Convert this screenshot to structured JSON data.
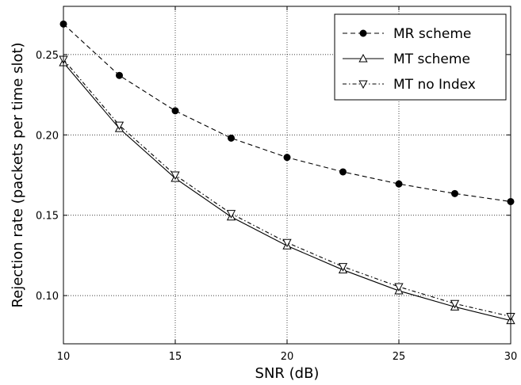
{
  "chart_data": {
    "type": "line",
    "xlabel": "SNR (dB)",
    "ylabel": "Rejection rate (packets per time slot)",
    "xlim": [
      10,
      30
    ],
    "ylim": [
      0.07,
      0.28
    ],
    "xticks": [
      "10",
      "15",
      "20",
      "25",
      "30"
    ],
    "xtick_values": [
      10,
      15,
      20,
      25,
      30
    ],
    "yticks": [
      "0.10",
      "0.15",
      "0.20",
      "0.25"
    ],
    "ytick_values": [
      0.1,
      0.15,
      0.2,
      0.25
    ],
    "grid": true,
    "legend_position": "top-right",
    "x": [
      10,
      12.5,
      15,
      17.5,
      20,
      22.5,
      25,
      27.5,
      30
    ],
    "series": [
      {
        "name": "MR scheme",
        "values": [
          0.269,
          0.237,
          0.215,
          0.198,
          0.186,
          0.177,
          0.1695,
          0.1635,
          0.1585
        ],
        "line": "dashed",
        "marker": "filled-circle",
        "color": "#000000"
      },
      {
        "name": "MT scheme",
        "values": [
          0.245,
          0.204,
          0.173,
          0.149,
          0.131,
          0.116,
          0.103,
          0.093,
          0.0845
        ],
        "line": "solid",
        "marker": "triangle-up",
        "color": "#000000"
      },
      {
        "name": "MT no Index",
        "values": [
          0.247,
          0.206,
          0.175,
          0.151,
          0.133,
          0.118,
          0.1055,
          0.095,
          0.087
        ],
        "line": "dash-dot",
        "marker": "triangle-down",
        "color": "#000000"
      }
    ]
  }
}
